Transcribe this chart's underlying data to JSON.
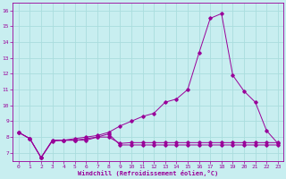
{
  "xlabel": "Windchill (Refroidissement éolien,°C)",
  "background_color": "#c8eef0",
  "grid_color": "#aadddd",
  "line_color": "#990099",
  "xlim": [
    -0.5,
    23.5
  ],
  "ylim": [
    6.5,
    16.5
  ],
  "xticks": [
    0,
    1,
    2,
    3,
    4,
    5,
    6,
    7,
    8,
    9,
    10,
    11,
    12,
    13,
    14,
    15,
    16,
    17,
    18,
    19,
    20,
    21,
    22,
    23
  ],
  "yticks": [
    7,
    8,
    9,
    10,
    11,
    12,
    13,
    14,
    15,
    16
  ],
  "line1_x": [
    0,
    1,
    2,
    3,
    4,
    5,
    6,
    7,
    8,
    9,
    10,
    11,
    12,
    13,
    14,
    15,
    16,
    17,
    18,
    19,
    20,
    21,
    22,
    23
  ],
  "line1_y": [
    8.3,
    7.9,
    6.7,
    7.8,
    7.8,
    7.8,
    7.8,
    8.0,
    8.2,
    7.5,
    7.5,
    7.5,
    7.5,
    7.5,
    7.5,
    7.5,
    7.5,
    7.5,
    7.5,
    7.5,
    7.5,
    7.5,
    7.5,
    7.5
  ],
  "line2_x": [
    0,
    1,
    2,
    3,
    4,
    5,
    6,
    7,
    8,
    9,
    10,
    11,
    12,
    13,
    14,
    15,
    16,
    17,
    18,
    19,
    20,
    21,
    22,
    23
  ],
  "line2_y": [
    8.3,
    7.9,
    6.7,
    7.8,
    7.8,
    7.9,
    8.0,
    8.1,
    8.3,
    8.7,
    9.0,
    9.3,
    9.5,
    10.2,
    10.4,
    11.0,
    13.3,
    15.5,
    15.8,
    11.9,
    10.9,
    10.2,
    8.4,
    7.6
  ],
  "line3_x": [
    0,
    1,
    2,
    3,
    4,
    5,
    6,
    7,
    8,
    9,
    10,
    11,
    12,
    13,
    14,
    15,
    16,
    17,
    18,
    19,
    20,
    21,
    22,
    23
  ],
  "line3_y": [
    8.3,
    7.9,
    6.7,
    7.75,
    7.8,
    7.8,
    7.9,
    8.0,
    8.0,
    7.6,
    7.65,
    7.65,
    7.65,
    7.65,
    7.65,
    7.65,
    7.65,
    7.65,
    7.65,
    7.65,
    7.65,
    7.65,
    7.65,
    7.65
  ]
}
